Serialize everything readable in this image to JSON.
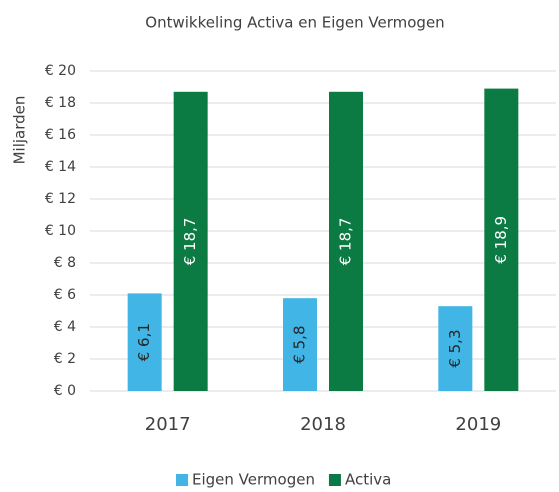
{
  "chart_data": {
    "type": "bar",
    "title": "Ontwikkeling Activa en Eigen Vermogen",
    "ylabel": "Miljarden",
    "categories": [
      "2017",
      "2018",
      "2019"
    ],
    "series": [
      {
        "name": "Eigen Vermogen",
        "color": "#41b6e6",
        "values": [
          6.1,
          5.8,
          5.3
        ],
        "value_labels": [
          "€ 6,1",
          "€ 5,8",
          "€ 5,3"
        ]
      },
      {
        "name": "Activa",
        "color": "#0b7a43",
        "values": [
          18.7,
          18.7,
          18.9
        ],
        "value_labels": [
          "€ 18,7",
          "€ 18,7",
          "€ 18,9"
        ]
      }
    ],
    "ylim": [
      0,
      20
    ],
    "yticks": [
      {
        "value": 0,
        "label": "€ 0"
      },
      {
        "value": 2,
        "label": "€ 2"
      },
      {
        "value": 4,
        "label": "€ 4"
      },
      {
        "value": 6,
        "label": "€ 6"
      },
      {
        "value": 8,
        "label": "€ 8"
      },
      {
        "value": 10,
        "label": "€ 10"
      },
      {
        "value": 12,
        "label": "€ 12"
      },
      {
        "value": 14,
        "label": "€ 14"
      },
      {
        "value": 16,
        "label": "€ 16"
      },
      {
        "value": 18,
        "label": "€ 18"
      },
      {
        "value": 20,
        "label": "€ 20"
      }
    ],
    "grid": true,
    "legend": "bottom"
  }
}
